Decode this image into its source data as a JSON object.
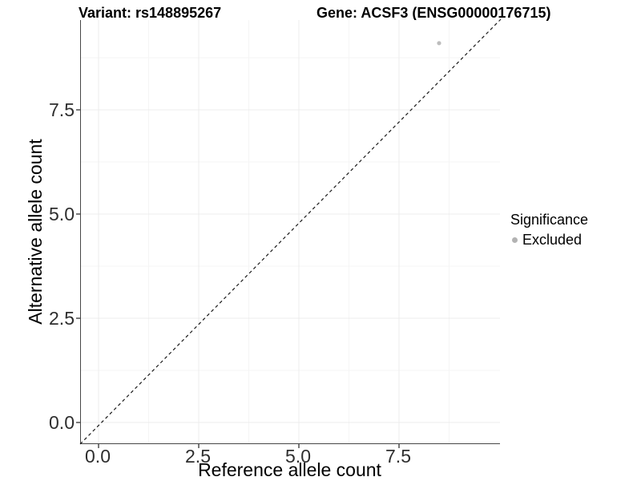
{
  "header": {
    "title_left": "Variant: rs148895267",
    "title_right": "Gene: ACSF3 (ENSG00000176715)"
  },
  "chart_data": {
    "type": "scatter",
    "title": "Variant: rs148895267  |  Gene: ACSF3 (ENSG00000176715)",
    "xlabel": "Reference allele count",
    "ylabel": "Alternative allele count",
    "xlim": [
      -0.45,
      10.0
    ],
    "ylim": [
      -0.5,
      9.65
    ],
    "grid": true,
    "x_ticks": [
      {
        "value": 0.0,
        "label": "0.0"
      },
      {
        "value": 2.5,
        "label": "2.5"
      },
      {
        "value": 5.0,
        "label": "5.0"
      },
      {
        "value": 7.5,
        "label": "7.5"
      }
    ],
    "y_ticks": [
      {
        "value": 0.0,
        "label": "0.0"
      },
      {
        "value": 2.5,
        "label": "2.5"
      },
      {
        "value": 5.0,
        "label": "5.0"
      },
      {
        "value": 7.5,
        "label": "7.5"
      }
    ],
    "x_minor_ticks": [
      1.25,
      3.75,
      6.25,
      8.75
    ],
    "y_minor_ticks": [
      1.25,
      3.75,
      6.25,
      8.75
    ],
    "points": [
      {
        "x": 8.5,
        "y": 9.1,
        "significance": "Excluded"
      }
    ],
    "reference_line": {
      "kind": "identity y=x",
      "style": "dashed",
      "color": "#1a1a1a"
    },
    "legend": {
      "title": "Significance",
      "position": "right",
      "entries": [
        {
          "label": "Excluded",
          "color": "#b3b3b3"
        }
      ]
    },
    "colors": {
      "point": "#bdbdbd",
      "grid_major": "#ececec",
      "grid_minor": "#f5f5f5",
      "axis_line": "#474747",
      "tick_mark": "#333333"
    }
  }
}
